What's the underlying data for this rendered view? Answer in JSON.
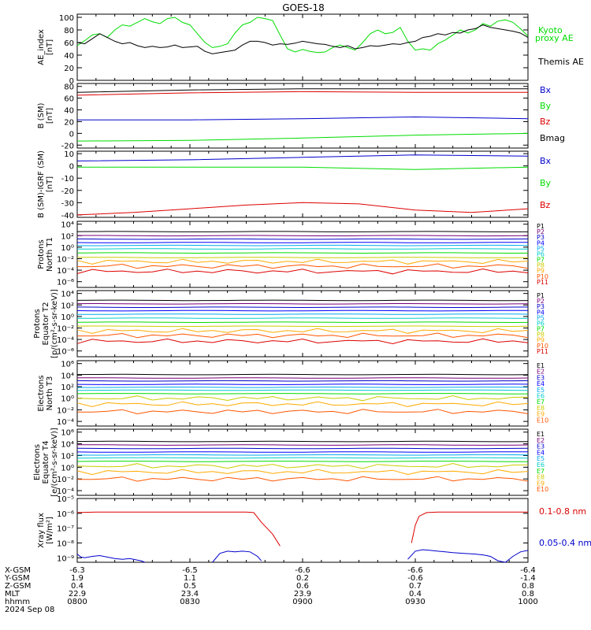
{
  "title": "GOES-18",
  "colors": {
    "black": "#000000",
    "red": "#dd0000",
    "green": "#00dd00",
    "blue": "#0000cc",
    "kyoto": "#00dd00",
    "themis": "#000000",
    "p_palette": [
      "#000000",
      "#770077",
      "#0000cc",
      "#0000ff",
      "#00aaee",
      "#00cccc",
      "#00dd00",
      "#cccc00",
      "#ffaa00",
      "#ff5500",
      "#dd0000",
      "#aa0000"
    ]
  },
  "bottom_axis": {
    "row_labels": [
      "X-GSM",
      "Y-GSM",
      "Z-GSM",
      "MLT",
      "hhmm",
      "2024 Sep 08"
    ],
    "columns": [
      [
        "-6.3",
        "1.9",
        "0.4",
        "22.9",
        "0800"
      ],
      [
        "-6.5",
        "1.1",
        "0.5",
        "23.4",
        "0830"
      ],
      [
        "-6.6",
        "0.2",
        "0.6",
        "23.9",
        "0900"
      ],
      [
        "-6.6",
        "-0.6",
        "0.7",
        "0.4",
        "0930"
      ],
      [
        "-6.4",
        "-1.4",
        "0.8",
        "0.8",
        "1000"
      ]
    ]
  },
  "chart_data": [
    {
      "type": "line",
      "panel": "ae",
      "ylabel": [
        "AE_index",
        "[nT]"
      ],
      "yticks": [
        "100",
        "80",
        "60",
        "40",
        "20",
        "0"
      ],
      "ylim": [
        0,
        105
      ],
      "x_range": [
        800,
        1000
      ],
      "legend": [
        {
          "label": "Kyoto",
          "color": "#00dd00"
        },
        {
          "label": "proxy AE",
          "color": "#00dd00"
        },
        {
          "label": "Themis AE",
          "color": "#000000"
        }
      ],
      "series": [
        {
          "name": "Kyoto",
          "color": "#00dd00",
          "x": [
            0,
            2,
            4,
            6,
            8,
            10,
            12,
            14,
            16,
            18,
            20,
            22,
            24,
            26,
            28,
            30,
            32,
            34,
            36,
            38,
            40,
            42,
            44,
            46,
            48,
            50,
            52,
            54,
            56,
            58,
            60,
            62,
            64,
            66,
            68,
            70,
            72,
            74,
            76,
            78,
            80,
            82,
            84,
            86,
            88,
            90,
            92,
            94,
            96,
            98,
            100,
            102,
            104,
            106,
            108,
            110,
            112,
            114,
            116,
            118,
            120
          ],
          "values": [
            55,
            63,
            72,
            74,
            68,
            80,
            88,
            86,
            92,
            98,
            93,
            90,
            98,
            100,
            92,
            88,
            74,
            60,
            52,
            54,
            58,
            75,
            88,
            92,
            100,
            98,
            95,
            72,
            50,
            45,
            49,
            46,
            44,
            45,
            52,
            56,
            52,
            48,
            60,
            74,
            80,
            74,
            76,
            84,
            62,
            48,
            50,
            48,
            58,
            64,
            72,
            80,
            75,
            80,
            90,
            86,
            94,
            96,
            92,
            82,
            70
          ]
        },
        {
          "name": "Themis AE",
          "color": "#000000",
          "x": [
            0,
            2,
            4,
            6,
            8,
            10,
            12,
            14,
            16,
            18,
            20,
            22,
            24,
            26,
            28,
            30,
            32,
            34,
            36,
            38,
            40,
            42,
            44,
            46,
            48,
            50,
            52,
            54,
            56,
            58,
            60,
            62,
            64,
            66,
            68,
            70,
            72,
            74,
            76,
            78,
            80,
            82,
            84,
            86,
            88,
            90,
            92,
            94,
            96,
            98,
            100,
            102,
            104,
            106,
            108,
            110,
            112,
            114,
            116,
            118,
            120
          ],
          "values": [
            60,
            58,
            66,
            74,
            68,
            62,
            58,
            60,
            55,
            52,
            54,
            52,
            53,
            56,
            52,
            53,
            54,
            46,
            42,
            44,
            46,
            48,
            56,
            62,
            62,
            60,
            56,
            58,
            57,
            59,
            62,
            60,
            58,
            57,
            54,
            52,
            55,
            50,
            52,
            55,
            54,
            56,
            58,
            57,
            60,
            62,
            68,
            70,
            74,
            72,
            76,
            75,
            80,
            82,
            88,
            84,
            82,
            80,
            78,
            75,
            68
          ]
        }
      ]
    },
    {
      "type": "line",
      "panel": "b_sm",
      "ylabel": [
        "B (SM)",
        "[nT]"
      ],
      "yticks": [
        "80",
        "60",
        "40",
        "20",
        "0",
        "-20"
      ],
      "ylim": [
        -25,
        85
      ],
      "legend": [
        {
          "label": "Bx",
          "color": "#0000cc"
        },
        {
          "label": "By",
          "color": "#00dd00"
        },
        {
          "label": "Bz",
          "color": "#dd0000"
        },
        {
          "label": "Bmag",
          "color": "#000000"
        }
      ],
      "series": [
        {
          "name": "Bmag",
          "color": "#000000",
          "x": [
            0,
            30,
            60,
            90,
            120
          ],
          "values": [
            70,
            74,
            76,
            76,
            76
          ]
        },
        {
          "name": "Bz",
          "color": "#dd0000",
          "x": [
            0,
            30,
            60,
            90,
            120
          ],
          "values": [
            65,
            69,
            71,
            70,
            70
          ]
        },
        {
          "name": "Bx",
          "color": "#0000cc",
          "x": [
            0,
            30,
            60,
            90,
            120
          ],
          "values": [
            23,
            23,
            25,
            28,
            25
          ]
        },
        {
          "name": "By",
          "color": "#00dd00",
          "x": [
            0,
            30,
            60,
            90,
            120
          ],
          "values": [
            -13,
            -12,
            -8,
            -3,
            0
          ]
        }
      ]
    },
    {
      "type": "line",
      "panel": "b_igrf",
      "ylabel": [
        "B (SM)-IGRF (SM)",
        "[nT]"
      ],
      "yticks": [
        "10",
        "0",
        "-10",
        "-20",
        "-30",
        "-40"
      ],
      "ylim": [
        -42,
        12
      ],
      "legend": [
        {
          "label": "Bx",
          "color": "#0000cc"
        },
        {
          "label": "By",
          "color": "#00dd00"
        },
        {
          "label": "Bz",
          "color": "#dd0000"
        }
      ],
      "series": [
        {
          "name": "Bx",
          "color": "#0000cc",
          "x": [
            0,
            30,
            60,
            90,
            120
          ],
          "values": [
            4,
            5,
            7,
            9,
            8
          ]
        },
        {
          "name": "By",
          "color": "#00dd00",
          "x": [
            0,
            30,
            60,
            90,
            120
          ],
          "values": [
            -1,
            -1,
            -1,
            -3,
            -1
          ]
        },
        {
          "name": "Bz",
          "color": "#dd0000",
          "x": [
            0,
            15,
            30,
            45,
            60,
            75,
            90,
            105,
            120
          ],
          "values": [
            -40,
            -38,
            -35,
            -32,
            -30,
            -31,
            -36,
            -38,
            -35
          ]
        }
      ]
    },
    {
      "type": "line",
      "panel": "protons_t1",
      "ylabel": [
        "Protons",
        "North T1"
      ],
      "yscale": "log",
      "yticks": [
        "10⁴",
        "10²",
        "10⁰",
        "10⁻²",
        "10⁻⁴",
        "10⁻⁶"
      ],
      "ylim_exp": [
        -7,
        4.5
      ],
      "channels": [
        "P1",
        "P2",
        "P3",
        "P4",
        "P5",
        "P6",
        "P7",
        "P8",
        "P9",
        "P10",
        "P11"
      ],
      "levels_exp": [
        2.7,
        2.0,
        1.4,
        0.8,
        0.3,
        -0.3,
        -1.0,
        -1.8,
        -2.5,
        -3.3,
        -4.2
      ]
    },
    {
      "type": "line",
      "panel": "protons_t2",
      "ylabel": [
        "Protons",
        "Equator T2",
        "[p/(cm²-s-sr-keV)]"
      ],
      "yscale": "log",
      "yticks": [
        "10⁴",
        "10²",
        "10⁰",
        "10⁻²",
        "10⁻⁴",
        "10⁻⁶"
      ],
      "ylim_exp": [
        -7,
        4.5
      ],
      "channels": [
        "P1",
        "P2",
        "P3",
        "P4",
        "P5",
        "P6",
        "P7",
        "P8",
        "P9",
        "P10",
        "P11"
      ],
      "levels_exp": [
        2.8,
        2.2,
        1.6,
        1.0,
        0.4,
        -0.3,
        -1.0,
        -1.7,
        -2.5,
        -3.3,
        -4.3
      ]
    },
    {
      "type": "line",
      "panel": "electrons_t3",
      "ylabel": [
        "Electrons",
        "North T3"
      ],
      "yscale": "log",
      "yticks": [
        "10⁶",
        "10⁴",
        "10²",
        "10⁰",
        "10⁻²",
        "10⁻⁴"
      ],
      "ylim_exp": [
        -4.8,
        6.5
      ],
      "channels": [
        "E1",
        "E2",
        "E3",
        "E4",
        "E5",
        "E6",
        "E7",
        "E8",
        "E9",
        "E10"
      ],
      "levels_exp": [
        4.1,
        3.5,
        3.0,
        2.4,
        1.9,
        1.4,
        0.8,
        0.0,
        -1.0,
        -2.3
      ]
    },
    {
      "type": "line",
      "panel": "electrons_t4",
      "ylabel": [
        "Electrons",
        "Equator T4",
        "[e/(cm²-s-sr-keV)]"
      ],
      "yscale": "log",
      "yticks": [
        "10⁶",
        "10⁴",
        "10²",
        "10⁰",
        "10⁻²",
        "10⁻⁴"
      ],
      "ylim_exp": [
        -4.8,
        6.5
      ],
      "channels": [
        "E1",
        "E2",
        "E3",
        "E4",
        "E5",
        "E6",
        "E7",
        "E8",
        "E9",
        "E10"
      ],
      "levels_exp": [
        4.4,
        3.8,
        3.2,
        2.6,
        2.1,
        1.6,
        1.0,
        0.2,
        -0.8,
        -2.0
      ]
    },
    {
      "type": "line",
      "panel": "xray",
      "ylabel": [
        "Xray flux",
        "[W/m²]"
      ],
      "yscale": "log",
      "yticks": [
        "10⁻⁵",
        "10⁻⁶",
        "10⁻⁷",
        "10⁻⁸",
        "10⁻⁹"
      ],
      "ylim_exp": [
        -9.3,
        -5
      ],
      "legend": [
        {
          "label": "0.1-0.8 nm",
          "color": "#dd0000"
        },
        {
          "label": "0.05-0.4 nm",
          "color": "#0000cc"
        }
      ],
      "series": [
        {
          "name": "0.1-0.8 nm",
          "color": "#dd0000",
          "x": [
            0,
            5,
            10,
            20,
            30,
            40,
            45,
            47,
            49,
            52,
            54
          ],
          "values": [
            -5.95,
            -5.92,
            -5.92,
            -5.92,
            -5.92,
            -5.92,
            -5.92,
            -5.95,
            -6.6,
            -7.4,
            -8.2
          ]
        },
        {
          "name": "0.1-0.8 nm b",
          "color": "#dd0000",
          "x": [
            89,
            90,
            91,
            93,
            96,
            100,
            110,
            120
          ],
          "values": [
            -8.0,
            -6.8,
            -6.2,
            -5.95,
            -5.92,
            -5.92,
            -5.92,
            -5.92
          ]
        },
        {
          "name": "0.05-0.4 nm",
          "color": "#0000cc",
          "x": [
            0,
            1,
            2,
            4,
            6,
            8,
            10,
            12,
            14,
            16,
            17,
            18
          ],
          "values": [
            -8.75,
            -8.95,
            -9.0,
            -8.9,
            -8.85,
            -8.95,
            -9.05,
            -9.1,
            -9.05,
            -9.15,
            -9.2,
            -9.3
          ]
        },
        {
          "name": "0.05-0.4 nm b",
          "color": "#0000cc",
          "x": [
            36,
            38,
            40,
            42,
            44,
            46,
            48,
            49
          ],
          "values": [
            -9.3,
            -8.7,
            -8.55,
            -8.6,
            -8.55,
            -8.6,
            -8.9,
            -9.2
          ]
        },
        {
          "name": "0.05-0.4 nm c",
          "color": "#0000cc",
          "x": [
            88,
            90,
            92,
            94,
            96,
            98,
            100,
            103,
            106,
            108,
            110,
            112,
            114,
            116,
            118,
            120
          ],
          "values": [
            -9.1,
            -8.55,
            -8.45,
            -8.5,
            -8.55,
            -8.6,
            -8.65,
            -8.7,
            -8.75,
            -8.8,
            -8.9,
            -9.2,
            -9.3,
            -8.9,
            -8.6,
            -8.5
          ]
        }
      ]
    }
  ]
}
